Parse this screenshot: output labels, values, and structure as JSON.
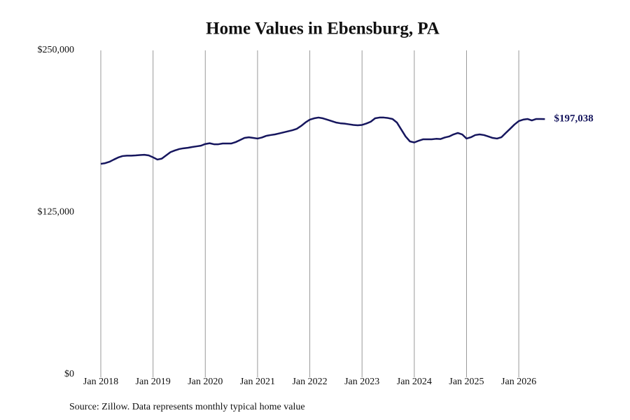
{
  "chart_data": {
    "type": "line",
    "title": "Home Values in Ebensburg, PA",
    "source": "Source: Zillow. Data represents monthly typical home value",
    "x": [
      "2018-01",
      "2018-02",
      "2018-03",
      "2018-04",
      "2018-05",
      "2018-06",
      "2018-07",
      "2018-08",
      "2018-09",
      "2018-10",
      "2018-11",
      "2018-12",
      "2019-01",
      "2019-02",
      "2019-03",
      "2019-04",
      "2019-05",
      "2019-06",
      "2019-07",
      "2019-08",
      "2019-09",
      "2019-10",
      "2019-11",
      "2019-12",
      "2020-01",
      "2020-02",
      "2020-03",
      "2020-04",
      "2020-05",
      "2020-06",
      "2020-07",
      "2020-08",
      "2020-09",
      "2020-10",
      "2020-11",
      "2020-12",
      "2021-01",
      "2021-02",
      "2021-03",
      "2021-04",
      "2021-05",
      "2021-06",
      "2021-07",
      "2021-08",
      "2021-09",
      "2021-10",
      "2021-11",
      "2021-12",
      "2022-01",
      "2022-02",
      "2022-03",
      "2022-04",
      "2022-05",
      "2022-06",
      "2022-07",
      "2022-08",
      "2022-09",
      "2022-10",
      "2022-11",
      "2022-12",
      "2023-01",
      "2023-02",
      "2023-03",
      "2023-04",
      "2023-05",
      "2023-06",
      "2023-07",
      "2023-08",
      "2023-09",
      "2023-10",
      "2023-11",
      "2023-12",
      "2024-01",
      "2024-02",
      "2024-03",
      "2024-04",
      "2024-05",
      "2024-06",
      "2024-07",
      "2024-08",
      "2024-09",
      "2024-10",
      "2024-11",
      "2024-12",
      "2025-01",
      "2025-02",
      "2025-03",
      "2025-04",
      "2025-05",
      "2025-06",
      "2025-07",
      "2025-08",
      "2025-09",
      "2025-10",
      "2025-11",
      "2025-12",
      "2026-01",
      "2026-02",
      "2026-03",
      "2026-04",
      "2026-05",
      "2026-06",
      "2026-07"
    ],
    "series": [
      {
        "name": "Home value",
        "color": "#16165e",
        "values": [
          162500,
          163000,
          164100,
          165800,
          167400,
          168500,
          168800,
          168800,
          169000,
          169300,
          169500,
          169000,
          167500,
          165800,
          166500,
          169000,
          171500,
          172800,
          173900,
          174500,
          174900,
          175500,
          176000,
          176500,
          177800,
          178400,
          177600,
          177600,
          178200,
          178200,
          178200,
          179300,
          180900,
          182500,
          183000,
          182500,
          182000,
          182800,
          184100,
          184700,
          185200,
          186000,
          186800,
          187600,
          188400,
          189500,
          191700,
          194400,
          196600,
          197600,
          198200,
          197600,
          196600,
          195500,
          194400,
          193800,
          193500,
          193000,
          192500,
          192200,
          192500,
          193600,
          195000,
          197600,
          198200,
          198200,
          197800,
          197100,
          194400,
          189000,
          183600,
          179800,
          179000,
          180300,
          181400,
          181400,
          181400,
          181800,
          181600,
          182800,
          183600,
          185200,
          186300,
          185200,
          182000,
          183000,
          184700,
          185200,
          184700,
          183600,
          182500,
          182000,
          183000,
          186300,
          189500,
          192800,
          195500,
          196600,
          197100,
          196000,
          197100,
          197100,
          197038
        ]
      }
    ],
    "end_label": {
      "value": 197038,
      "label": "$197,038"
    },
    "ylim": [
      0,
      250000
    ],
    "yticks": [
      {
        "value": 0,
        "label": "$0"
      },
      {
        "value": 125000,
        "label": "$125,000"
      },
      {
        "value": 250000,
        "label": "$250,000"
      }
    ],
    "xticks": [
      {
        "value": "2018-01",
        "label": "Jan 2018"
      },
      {
        "value": "2019-01",
        "label": "Jan 2019"
      },
      {
        "value": "2020-01",
        "label": "Jan 2020"
      },
      {
        "value": "2021-01",
        "label": "Jan 2021"
      },
      {
        "value": "2022-01",
        "label": "Jan 2022"
      },
      {
        "value": "2023-01",
        "label": "Jan 2023"
      },
      {
        "value": "2024-01",
        "label": "Jan 2024"
      },
      {
        "value": "2025-01",
        "label": "Jan 2025"
      },
      {
        "value": "2026-01",
        "label": "Jan 2026"
      }
    ],
    "grid": "x"
  }
}
